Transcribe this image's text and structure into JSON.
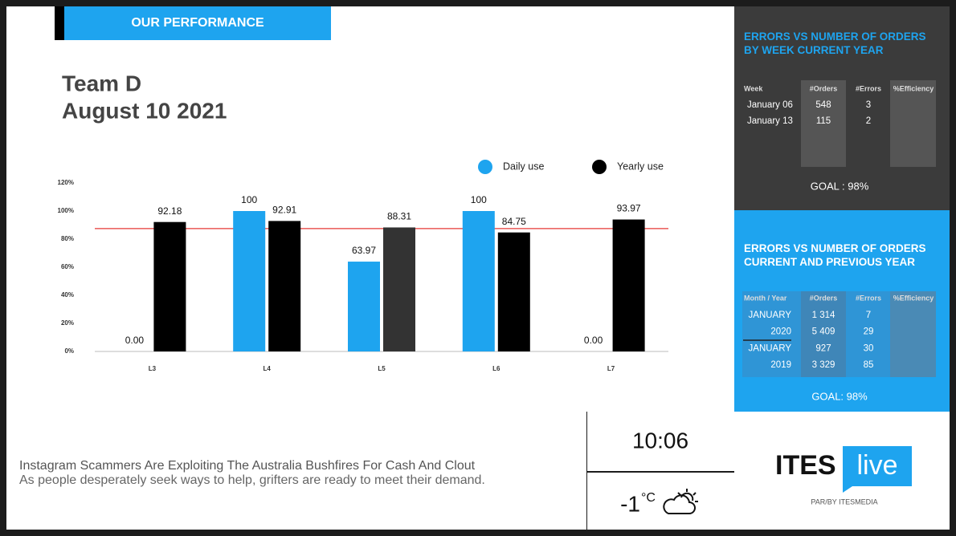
{
  "header": {
    "title": "OUR PERFORMANCE",
    "team": "Team D",
    "date": "August 10 2021"
  },
  "chart_data": {
    "type": "bar",
    "categories": [
      "L3",
      "L4",
      "L5",
      "L6",
      "L7"
    ],
    "series": [
      {
        "name": "Daily use",
        "color": "#1ea4ef",
        "values": [
          0,
          100,
          63.97,
          100,
          0
        ],
        "value_labels": [
          "0.00",
          "100",
          "63.97",
          "100",
          "0.00"
        ]
      },
      {
        "name": "Yearly use",
        "color": "#000000",
        "values": [
          92.18,
          92.91,
          88.31,
          84.75,
          93.97
        ],
        "point_colors": [
          "#000000",
          "#000000",
          "#333333",
          "#000000",
          "#000000"
        ]
      }
    ],
    "ylim": [
      0,
      120
    ],
    "yticks": [
      {
        "value": 0,
        "label": "0%"
      },
      {
        "value": 20,
        "label": "20%"
      },
      {
        "value": 40,
        "label": "40%"
      },
      {
        "value": 60,
        "label": "60%"
      },
      {
        "value": 80,
        "label": "80%"
      },
      {
        "value": 100,
        "label": "100%"
      },
      {
        "value": 120,
        "label": "120%"
      }
    ],
    "target_line": {
      "value": 87.5,
      "color": "#e53935"
    },
    "grid": false,
    "legend": "top-right"
  },
  "weekly_panel": {
    "title": "ERRORS VS NUMBER OF ORDERS BY WEEK CURRENT YEAR",
    "columns": [
      "Week",
      "#Orders",
      "#Errors",
      "%Efficiency"
    ],
    "rows": [
      [
        "January 06",
        "548",
        "3"
      ],
      [
        "January 13",
        "115",
        "2"
      ]
    ],
    "goal": "GOAL : 98%"
  },
  "yearly_panel": {
    "title": "ERRORS VS NUMBER OF ORDERS CURRENT AND PREVIOUS YEAR",
    "columns": [
      "Month / Year",
      "#Orders",
      "#Errors",
      "%Efficiency"
    ],
    "rows": [
      [
        "JANUARY",
        "1 314",
        "7"
      ],
      [
        "2020",
        "5 409",
        "29"
      ],
      [
        "JANUARY",
        "927",
        "30"
      ],
      [
        "2019",
        "3 329",
        "85"
      ]
    ],
    "goal": "GOAL: 98%"
  },
  "news": {
    "headline": "Instagram Scammers Are Exploiting The Australia Bushfires For Cash And Clout",
    "subline": "As people desperately seek ways to help, grifters are ready to meet their demand."
  },
  "clock": {
    "time": "10:06",
    "temperature": "-1",
    "unit": "°C"
  },
  "logo": {
    "brand": "ITES",
    "badge": "live",
    "tagline": "PAR/BY ITESMEDIA"
  }
}
